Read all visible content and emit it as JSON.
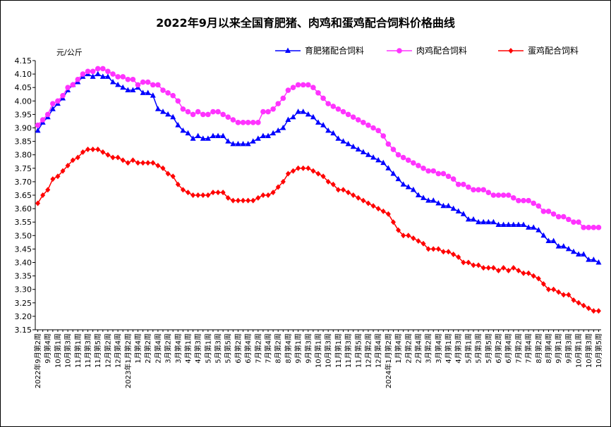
{
  "chart_data": {
    "type": "line",
    "title": "2022年9月以来全国育肥猪、肉鸡和蛋鸡配合饲料价格曲线",
    "y_label": "元/公斤",
    "legend": "top-right",
    "grid": false,
    "ylim": [
      3.15,
      4.15
    ],
    "yticks": [
      3.15,
      {
        "value": 3.2,
        "label": "3.20"
      },
      3.25,
      {
        "value": 3.3,
        "label": "3.30"
      },
      3.35,
      {
        "value": 3.4,
        "label": "3.40"
      },
      3.45,
      {
        "value": 3.5,
        "label": "3.50"
      },
      3.55,
      {
        "value": 3.6,
        "label": "3.60"
      },
      3.65,
      {
        "value": 3.7,
        "label": "3.70"
      },
      3.75,
      {
        "value": 3.8,
        "label": "3.80"
      },
      3.85,
      {
        "value": 3.9,
        "label": "3.90"
      },
      3.95,
      {
        "value": 4,
        "label": "4.00"
      },
      4.05,
      {
        "value": 4.1,
        "label": "4.10"
      },
      4.15
    ],
    "categories": [
      "2022年9月第2周",
      null,
      "9月第4周",
      null,
      "10月第1周",
      null,
      "10月第3周",
      null,
      "11月第1周",
      null,
      "11月第3周",
      null,
      "11月第5周",
      null,
      "12月第2周",
      null,
      "12月第4周",
      null,
      "2023年1月第2周",
      null,
      "1月第4周",
      null,
      "2月第2周",
      null,
      "2月第4周",
      null,
      "3月第2周",
      null,
      "3月第4周",
      null,
      "4月第1周",
      null,
      "4月第3周",
      null,
      "5月第1周",
      null,
      "5月第3周",
      null,
      "5月第5周",
      null,
      "6月第2周",
      null,
      "6月第4周",
      null,
      "7月第2周",
      null,
      "7月第4周",
      null,
      "8月第2周",
      null,
      "8月第4周",
      null,
      "9月第1周",
      null,
      "9月第3周",
      null,
      "10月第1周",
      null,
      "10月第3周",
      null,
      "11月第1周",
      null,
      "11月第3周",
      null,
      "11月第5周",
      null,
      "12月第2周",
      null,
      "12月第4周",
      null,
      "2024年1月第2周",
      null,
      "1月第4周",
      null,
      "2月第2周",
      null,
      "2月第4周",
      null,
      "3月第2周",
      null,
      "3月第4周",
      null,
      "4月第1周",
      null,
      "4月第3周",
      null,
      "5月第1周",
      null,
      "5月第3周",
      null,
      "5月第5周",
      null,
      "6月第2周",
      null,
      "6月第4周",
      null,
      "7月第2周",
      null,
      "7月第4周",
      null,
      "8月第2周",
      null,
      "8月第4周",
      null,
      "9月第1周",
      null,
      "9月第3周",
      null,
      "10月第1周",
      null,
      "10月第3周",
      null,
      "10月第5周"
    ],
    "series": [
      {
        "name": "育肥猪配合饲料",
        "color": "#0000ff",
        "marker": "triangle",
        "values": [
          3.89,
          3.92,
          3.94,
          3.97,
          3.99,
          4.01,
          4.04,
          4.06,
          4.07,
          4.09,
          4.1,
          4.09,
          4.1,
          4.09,
          4.09,
          4.07,
          4.06,
          4.05,
          4.04,
          4.04,
          4.05,
          4.03,
          4.03,
          4.02,
          3.97,
          3.96,
          3.95,
          3.94,
          3.91,
          3.89,
          3.88,
          3.86,
          3.87,
          3.86,
          3.86,
          3.87,
          3.87,
          3.87,
          3.85,
          3.84,
          3.84,
          3.84,
          3.84,
          3.85,
          3.86,
          3.87,
          3.87,
          3.88,
          3.89,
          3.9,
          3.93,
          3.94,
          3.96,
          3.96,
          3.95,
          3.94,
          3.92,
          3.91,
          3.89,
          3.88,
          3.86,
          3.85,
          3.84,
          3.83,
          3.82,
          3.81,
          3.8,
          3.79,
          3.78,
          3.77,
          3.75,
          3.73,
          3.71,
          3.69,
          3.68,
          3.67,
          3.65,
          3.64,
          3.63,
          3.63,
          3.62,
          3.61,
          3.61,
          3.6,
          3.59,
          3.58,
          3.56,
          3.56,
          3.55,
          3.55,
          3.55,
          3.55,
          3.54,
          3.54,
          3.54,
          3.54,
          3.54,
          3.54,
          3.53,
          3.53,
          3.52,
          3.5,
          3.48,
          3.48,
          3.46,
          3.46,
          3.45,
          3.44,
          3.43,
          3.43,
          3.41,
          3.41,
          3.4
        ]
      },
      {
        "name": "肉鸡配合饲料",
        "color": "#ff33ff",
        "marker": "circle",
        "values": [
          3.91,
          3.93,
          3.95,
          3.99,
          4.0,
          4.02,
          4.05,
          4.06,
          4.08,
          4.1,
          4.11,
          4.11,
          4.12,
          4.12,
          4.11,
          4.1,
          4.09,
          4.09,
          4.08,
          4.08,
          4.06,
          4.07,
          4.07,
          4.06,
          4.06,
          4.04,
          4.03,
          4.02,
          4.0,
          3.97,
          3.96,
          3.95,
          3.96,
          3.95,
          3.95,
          3.96,
          3.96,
          3.95,
          3.94,
          3.93,
          3.92,
          3.92,
          3.92,
          3.92,
          3.92,
          3.96,
          3.96,
          3.97,
          3.99,
          4.01,
          4.04,
          4.05,
          4.06,
          4.06,
          4.06,
          4.05,
          4.03,
          4.01,
          3.99,
          3.98,
          3.97,
          3.96,
          3.95,
          3.94,
          3.93,
          3.92,
          3.91,
          3.9,
          3.89,
          3.87,
          3.84,
          3.82,
          3.8,
          3.79,
          3.78,
          3.77,
          3.76,
          3.75,
          3.74,
          3.74,
          3.73,
          3.73,
          3.72,
          3.71,
          3.69,
          3.69,
          3.68,
          3.67,
          3.67,
          3.67,
          3.66,
          3.65,
          3.65,
          3.65,
          3.65,
          3.64,
          3.63,
          3.63,
          3.63,
          3.62,
          3.61,
          3.59,
          3.59,
          3.58,
          3.57,
          3.57,
          3.56,
          3.55,
          3.55,
          3.53,
          3.53,
          3.53,
          3.53
        ]
      },
      {
        "name": "蛋鸡配合饲料",
        "color": "#ff0000",
        "marker": "diamond",
        "values": [
          3.62,
          3.65,
          3.67,
          3.71,
          3.72,
          3.74,
          3.76,
          3.78,
          3.79,
          3.81,
          3.82,
          3.82,
          3.82,
          3.81,
          3.8,
          3.79,
          3.79,
          3.78,
          3.77,
          3.78,
          3.77,
          3.77,
          3.77,
          3.77,
          3.76,
          3.75,
          3.73,
          3.72,
          3.69,
          3.67,
          3.66,
          3.65,
          3.65,
          3.65,
          3.65,
          3.66,
          3.66,
          3.66,
          3.64,
          3.63,
          3.63,
          3.63,
          3.63,
          3.63,
          3.64,
          3.65,
          3.65,
          3.66,
          3.68,
          3.7,
          3.73,
          3.74,
          3.75,
          3.75,
          3.75,
          3.74,
          3.73,
          3.72,
          3.7,
          3.69,
          3.67,
          3.67,
          3.66,
          3.65,
          3.64,
          3.63,
          3.62,
          3.61,
          3.6,
          3.59,
          3.58,
          3.55,
          3.52,
          3.5,
          3.5,
          3.49,
          3.48,
          3.47,
          3.45,
          3.45,
          3.45,
          3.44,
          3.44,
          3.43,
          3.42,
          3.4,
          3.4,
          3.39,
          3.39,
          3.38,
          3.38,
          3.38,
          3.37,
          3.38,
          3.37,
          3.38,
          3.37,
          3.36,
          3.36,
          3.35,
          3.34,
          3.32,
          3.3,
          3.3,
          3.29,
          3.28,
          3.28,
          3.26,
          3.25,
          3.24,
          3.23,
          3.22,
          3.22
        ]
      }
    ]
  }
}
